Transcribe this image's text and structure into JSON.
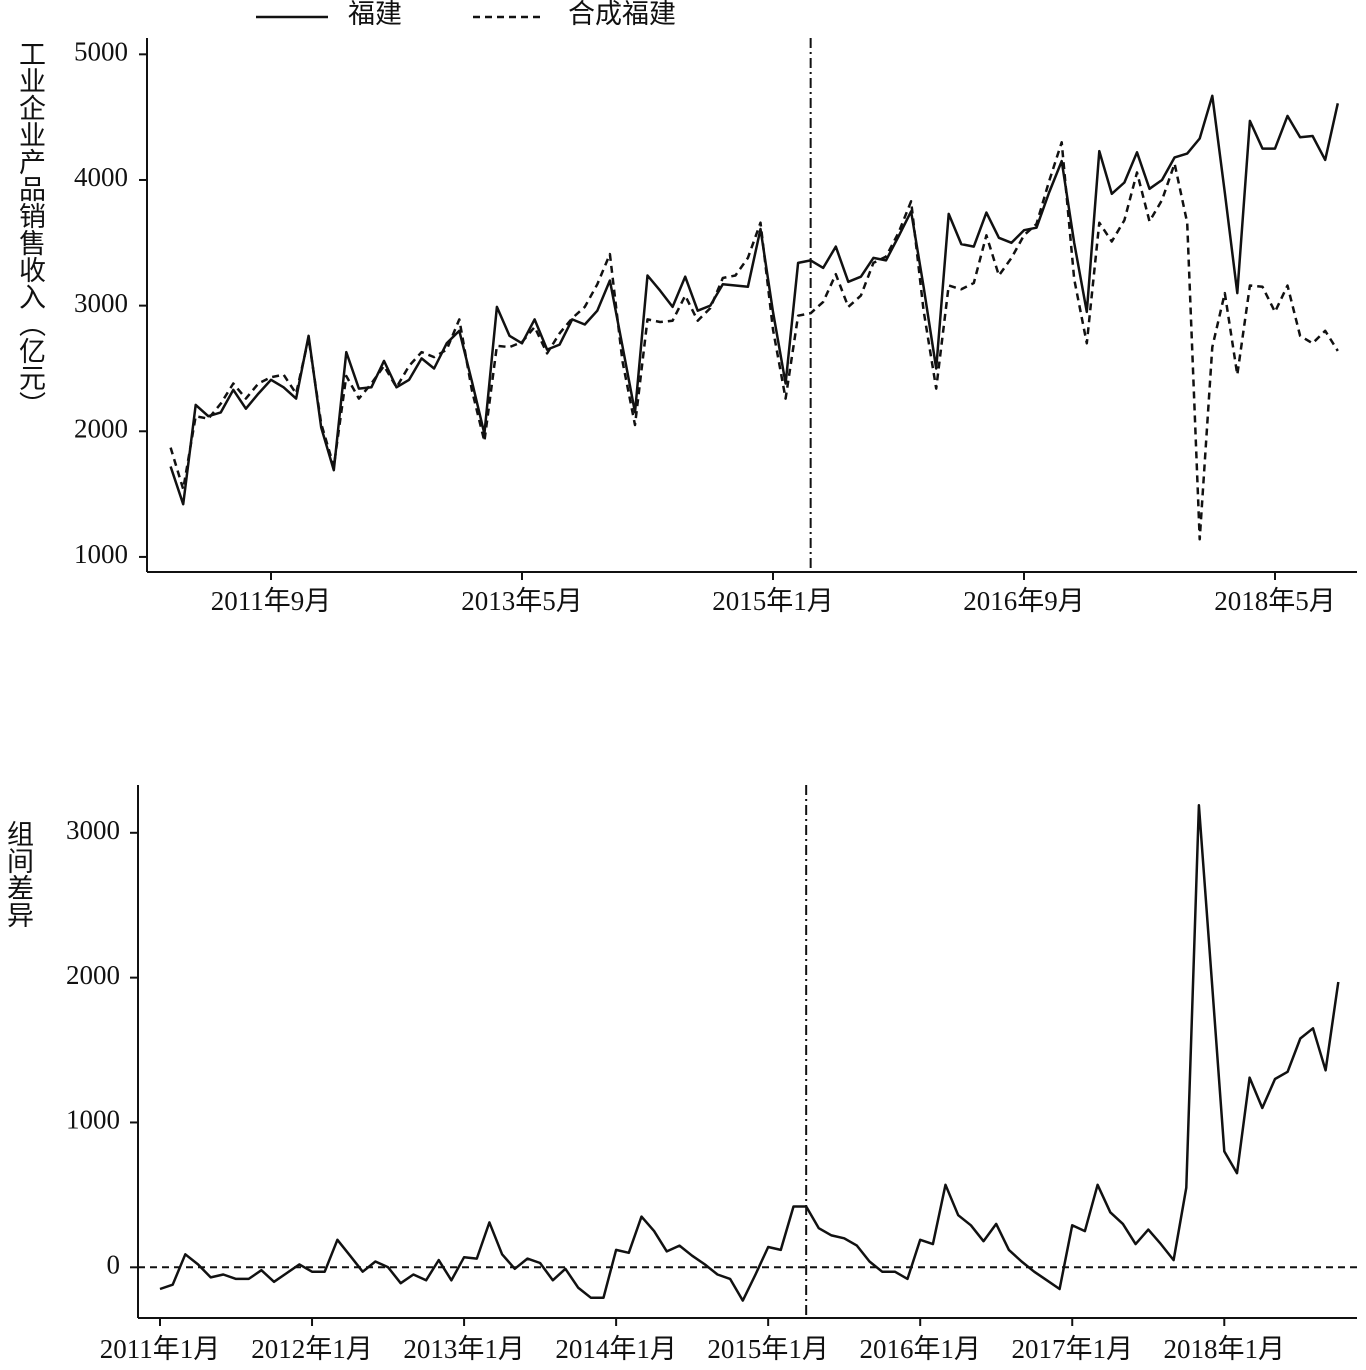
{
  "chart_data": [
    {
      "type": "line",
      "ylabel": "工业企业产品销售收入（亿元）",
      "categories": [
        "2011年1月",
        "2011年2月",
        "2011年3月",
        "2011年4月",
        "2011年5月",
        "2011年6月",
        "2011年7月",
        "2011年8月",
        "2011年9月",
        "2011年10月",
        "2011年11月",
        "2011年12月",
        "2012年1月",
        "2012年2月",
        "2012年3月",
        "2012年4月",
        "2012年5月",
        "2012年6月",
        "2012年7月",
        "2012年8月",
        "2012年9月",
        "2012年10月",
        "2012年11月",
        "2012年12月",
        "2013年1月",
        "2013年2月",
        "2013年3月",
        "2013年4月",
        "2013年5月",
        "2013年6月",
        "2013年7月",
        "2013年8月",
        "2013年9月",
        "2013年10月",
        "2013年11月",
        "2013年12月",
        "2014年1月",
        "2014年2月",
        "2014年3月",
        "2014年4月",
        "2014年5月",
        "2014年6月",
        "2014年7月",
        "2014年8月",
        "2014年9月",
        "2014年10月",
        "2014年11月",
        "2014年12月",
        "2015年1月",
        "2015年2月",
        "2015年3月",
        "2015年4月",
        "2015年5月",
        "2015年6月",
        "2015年7月",
        "2015年8月",
        "2015年9月",
        "2015年10月",
        "2015年11月",
        "2015年12月",
        "2016年1月",
        "2016年2月",
        "2016年3月",
        "2016年4月",
        "2016年5月",
        "2016年6月",
        "2016年7月",
        "2016年8月",
        "2016年9月",
        "2016年10月",
        "2016年11月",
        "2016年12月",
        "2017年1月",
        "2017年2月",
        "2017年3月",
        "2017年4月",
        "2017年5月",
        "2017年6月",
        "2017年7月",
        "2017年8月",
        "2017年9月",
        "2017年10月",
        "2017年11月",
        "2017年12月",
        "2018年1月",
        "2018年2月",
        "2018年3月",
        "2018年4月",
        "2018年5月",
        "2018年6月",
        "2018年7月",
        "2018年8月",
        "2018年9月",
        "2018年10月"
      ],
      "series": [
        {
          "name": "福建",
          "color": "#111111",
          "style": "solid",
          "values": [
            1720,
            1420,
            2210,
            2120,
            2150,
            2330,
            2180,
            2300,
            2410,
            2350,
            2260,
            2760,
            2030,
            1690,
            2630,
            2340,
            2350,
            2560,
            2350,
            2410,
            2580,
            2500,
            2700,
            2800,
            2400,
            1980,
            2990,
            2760,
            2700,
            2890,
            2650,
            2690,
            2890,
            2850,
            2960,
            3200,
            2680,
            2150,
            3240,
            3120,
            2990,
            3230,
            2960,
            3000,
            3170,
            3160,
            3150,
            3610,
            2950,
            2380,
            3340,
            3360,
            3300,
            3470,
            3190,
            3230,
            3380,
            3360,
            3550,
            3750,
            3150,
            2500,
            3730,
            3490,
            3470,
            3740,
            3540,
            3500,
            3600,
            3620,
            3900,
            4150,
            3500,
            2950,
            4230,
            3890,
            3980,
            4220,
            3930,
            4000,
            4180,
            4210,
            4330,
            4670,
            3900,
            3100,
            4470,
            4250,
            4250,
            4510,
            4340,
            4350,
            4160,
            4610
          ]
        },
        {
          "name": "合成福建",
          "color": "#111111",
          "style": "dashed",
          "values": [
            1870,
            1540,
            2120,
            2100,
            2220,
            2380,
            2260,
            2380,
            2430,
            2450,
            2300,
            2740,
            2060,
            1720,
            2440,
            2260,
            2380,
            2520,
            2350,
            2520,
            2630,
            2590,
            2650,
            2890,
            2330,
            1920,
            2680,
            2670,
            2710,
            2830,
            2620,
            2780,
            2900,
            2990,
            3170,
            3410,
            2560,
            2050,
            2890,
            2870,
            2880,
            3080,
            2880,
            2980,
            3220,
            3240,
            3380,
            3660,
            2810,
            2260,
            2920,
            2940,
            3030,
            3250,
            2990,
            3080,
            3340,
            3390,
            3580,
            3830,
            2960,
            2340,
            3160,
            3130,
            3180,
            3560,
            3240,
            3380,
            3560,
            3650,
            3990,
            4300,
            3210,
            2700,
            3660,
            3510,
            3680,
            4060,
            3670,
            3840,
            4130,
            3660,
            1140,
            2670,
            3100,
            2450,
            3160,
            3150,
            2950,
            3160,
            2760,
            2700,
            2800,
            2640
          ]
        }
      ],
      "ylim": [
        880,
        5130
      ],
      "yticks": [
        1000,
        2000,
        3000,
        4000,
        5000
      ],
      "xticks": [
        "2011年9月",
        "2013年5月",
        "2015年1月",
        "2016年9月",
        "2018年5月"
      ],
      "vline": "2015年4月"
    },
    {
      "type": "line",
      "ylabel": "组间差异",
      "categories": [
        "2011年1月",
        "2011年2月",
        "2011年3月",
        "2011年4月",
        "2011年5月",
        "2011年6月",
        "2011年7月",
        "2011年8月",
        "2011年9月",
        "2011年10月",
        "2011年11月",
        "2011年12月",
        "2012年1月",
        "2012年2月",
        "2012年3月",
        "2012年4月",
        "2012年5月",
        "2012年6月",
        "2012年7月",
        "2012年8月",
        "2012年9月",
        "2012年10月",
        "2012年11月",
        "2012年12月",
        "2013年1月",
        "2013年2月",
        "2013年3月",
        "2013年4月",
        "2013年5月",
        "2013年6月",
        "2013年7月",
        "2013年8月",
        "2013年9月",
        "2013年10月",
        "2013年11月",
        "2013年12月",
        "2014年1月",
        "2014年2月",
        "2014年3月",
        "2014年4月",
        "2014年5月",
        "2014年6月",
        "2014年7月",
        "2014年8月",
        "2014年9月",
        "2014年10月",
        "2014年11月",
        "2014年12月",
        "2015年1月",
        "2015年2月",
        "2015年3月",
        "2015年4月",
        "2015年5月",
        "2015年6月",
        "2015年7月",
        "2015年8月",
        "2015年9月",
        "2015年10月",
        "2015年11月",
        "2015年12月",
        "2016年1月",
        "2016年2月",
        "2016年3月",
        "2016年4月",
        "2016年5月",
        "2016年6月",
        "2016年7月",
        "2016年8月",
        "2016年9月",
        "2016年10月",
        "2016年11月",
        "2016年12月",
        "2017年1月",
        "2017年2月",
        "2017年3月",
        "2017年4月",
        "2017年5月",
        "2017年6月",
        "2017年7月",
        "2017年8月",
        "2017年9月",
        "2017年10月",
        "2017年11月",
        "2017年12月",
        "2018年1月",
        "2018年2月",
        "2018年3月",
        "2018年4月",
        "2018年5月",
        "2018年6月",
        "2018年7月",
        "2018年8月",
        "2018年9月",
        "2018年10月"
      ],
      "series": [
        {
          "color": "#111111",
          "style": "solid",
          "values": [
            -150,
            -120,
            90,
            20,
            -70,
            -50,
            -80,
            -80,
            -20,
            -100,
            -40,
            20,
            -30,
            -30,
            190,
            80,
            -30,
            40,
            0,
            -110,
            -50,
            -90,
            50,
            -90,
            70,
            60,
            310,
            90,
            -10,
            60,
            30,
            -90,
            -10,
            -140,
            -210,
            -210,
            120,
            100,
            350,
            250,
            110,
            150,
            80,
            20,
            -50,
            -80,
            -230,
            -50,
            140,
            120,
            420,
            420,
            270,
            220,
            200,
            150,
            40,
            -30,
            -30,
            -80,
            190,
            160,
            570,
            360,
            290,
            180,
            300,
            120,
            40,
            -30,
            -90,
            -150,
            290,
            250,
            570,
            380,
            300,
            160,
            260,
            160,
            50,
            550,
            3190,
            2000,
            800,
            650,
            1310,
            1100,
            1300,
            1350,
            1580,
            1650,
            1360,
            1970
          ]
        }
      ],
      "ylim": [
        -350,
        3330
      ],
      "yticks": [
        0,
        1000,
        2000,
        3000
      ],
      "xticks": [
        "2011年1月",
        "2012年1月",
        "2013年1月",
        "2014年1月",
        "2015年1月",
        "2016年1月",
        "2017年1月",
        "2018年1月"
      ],
      "vline": "2015年4月",
      "hline": 0
    }
  ]
}
